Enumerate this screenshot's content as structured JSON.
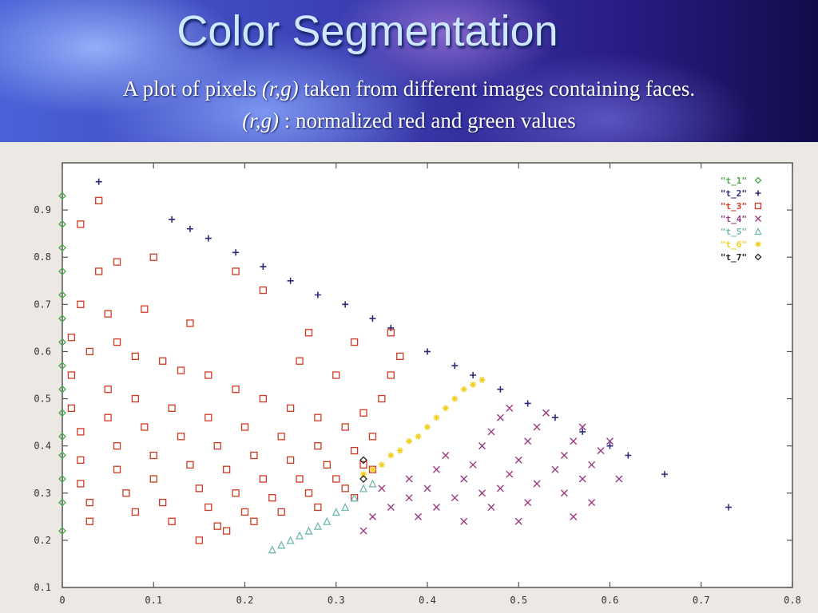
{
  "slide": {
    "title": "Color Segmentation",
    "subtitle_line1_pre": "A plot of pixels ",
    "subtitle_line1_var": "(r,g)",
    "subtitle_line1_post": " taken from different images containing faces.",
    "subtitle_line2_var": "(r,g)",
    "subtitle_line2_post": " : normalized red and green values"
  },
  "chart_data": {
    "type": "scatter",
    "title": "",
    "xlabel": "",
    "ylabel": "",
    "xlim": [
      0,
      0.8
    ],
    "ylim": [
      0.1,
      1.0
    ],
    "xticks": [
      "0",
      "0.1",
      "0.2",
      "0.3",
      "0.4",
      "0.5",
      "0.6",
      "0.7",
      "0.8"
    ],
    "yticks": [
      "0.1",
      "0.2",
      "0.3",
      "0.4",
      "0.5",
      "0.6",
      "0.7",
      "0.8",
      "0.9"
    ],
    "grid": false,
    "legend_position": "top-right",
    "series": [
      {
        "name": "\"t_1\"",
        "marker": "diamond",
        "color": "#4aa84a",
        "points": [
          [
            0.0,
            0.22
          ],
          [
            0.0,
            0.28
          ],
          [
            0.0,
            0.33
          ],
          [
            0.0,
            0.38
          ],
          [
            0.0,
            0.42
          ],
          [
            0.0,
            0.47
          ],
          [
            0.0,
            0.52
          ],
          [
            0.0,
            0.57
          ],
          [
            0.0,
            0.62
          ],
          [
            0.0,
            0.67
          ],
          [
            0.0,
            0.72
          ],
          [
            0.0,
            0.77
          ],
          [
            0.0,
            0.82
          ],
          [
            0.0,
            0.87
          ],
          [
            0.0,
            0.93
          ]
        ]
      },
      {
        "name": "\"t_2\"",
        "marker": "plus",
        "color": "#2a2a7a",
        "points": [
          [
            0.04,
            0.96
          ],
          [
            0.12,
            0.88
          ],
          [
            0.14,
            0.86
          ],
          [
            0.16,
            0.84
          ],
          [
            0.19,
            0.81
          ],
          [
            0.22,
            0.78
          ],
          [
            0.25,
            0.75
          ],
          [
            0.28,
            0.72
          ],
          [
            0.31,
            0.7
          ],
          [
            0.34,
            0.67
          ],
          [
            0.36,
            0.65
          ],
          [
            0.4,
            0.6
          ],
          [
            0.43,
            0.57
          ],
          [
            0.45,
            0.55
          ],
          [
            0.48,
            0.52
          ],
          [
            0.51,
            0.49
          ],
          [
            0.54,
            0.46
          ],
          [
            0.57,
            0.43
          ],
          [
            0.6,
            0.4
          ],
          [
            0.62,
            0.38
          ],
          [
            0.66,
            0.34
          ],
          [
            0.73,
            0.27
          ]
        ]
      },
      {
        "name": "\"t_3\"",
        "marker": "square",
        "color": "#d03a20",
        "points": [
          [
            0.02,
            0.87
          ],
          [
            0.04,
            0.92
          ],
          [
            0.04,
            0.77
          ],
          [
            0.06,
            0.79
          ],
          [
            0.1,
            0.8
          ],
          [
            0.02,
            0.7
          ],
          [
            0.05,
            0.68
          ],
          [
            0.09,
            0.69
          ],
          [
            0.14,
            0.66
          ],
          [
            0.19,
            0.77
          ],
          [
            0.22,
            0.73
          ],
          [
            0.27,
            0.64
          ],
          [
            0.32,
            0.62
          ],
          [
            0.36,
            0.64
          ],
          [
            0.37,
            0.59
          ],
          [
            0.01,
            0.63
          ],
          [
            0.03,
            0.6
          ],
          [
            0.06,
            0.62
          ],
          [
            0.08,
            0.59
          ],
          [
            0.11,
            0.58
          ],
          [
            0.13,
            0.56
          ],
          [
            0.16,
            0.55
          ],
          [
            0.19,
            0.52
          ],
          [
            0.22,
            0.5
          ],
          [
            0.25,
            0.48
          ],
          [
            0.28,
            0.46
          ],
          [
            0.31,
            0.44
          ],
          [
            0.34,
            0.42
          ],
          [
            0.35,
            0.5
          ],
          [
            0.36,
            0.55
          ],
          [
            0.3,
            0.55
          ],
          [
            0.26,
            0.58
          ],
          [
            0.33,
            0.47
          ],
          [
            0.01,
            0.55
          ],
          [
            0.01,
            0.48
          ],
          [
            0.02,
            0.43
          ],
          [
            0.02,
            0.37
          ],
          [
            0.02,
            0.32
          ],
          [
            0.03,
            0.28
          ],
          [
            0.03,
            0.24
          ],
          [
            0.05,
            0.52
          ],
          [
            0.05,
            0.46
          ],
          [
            0.06,
            0.4
          ],
          [
            0.06,
            0.35
          ],
          [
            0.07,
            0.3
          ],
          [
            0.08,
            0.26
          ],
          [
            0.08,
            0.5
          ],
          [
            0.09,
            0.44
          ],
          [
            0.1,
            0.38
          ],
          [
            0.1,
            0.33
          ],
          [
            0.11,
            0.28
          ],
          [
            0.12,
            0.24
          ],
          [
            0.12,
            0.48
          ],
          [
            0.13,
            0.42
          ],
          [
            0.14,
            0.36
          ],
          [
            0.15,
            0.31
          ],
          [
            0.16,
            0.27
          ],
          [
            0.17,
            0.23
          ],
          [
            0.16,
            0.46
          ],
          [
            0.17,
            0.4
          ],
          [
            0.18,
            0.35
          ],
          [
            0.19,
            0.3
          ],
          [
            0.2,
            0.26
          ],
          [
            0.21,
            0.24
          ],
          [
            0.2,
            0.44
          ],
          [
            0.21,
            0.38
          ],
          [
            0.22,
            0.33
          ],
          [
            0.23,
            0.29
          ],
          [
            0.24,
            0.26
          ],
          [
            0.24,
            0.42
          ],
          [
            0.25,
            0.37
          ],
          [
            0.26,
            0.33
          ],
          [
            0.27,
            0.3
          ],
          [
            0.28,
            0.27
          ],
          [
            0.28,
            0.4
          ],
          [
            0.29,
            0.36
          ],
          [
            0.3,
            0.33
          ],
          [
            0.31,
            0.31
          ],
          [
            0.32,
            0.29
          ],
          [
            0.32,
            0.39
          ],
          [
            0.33,
            0.36
          ],
          [
            0.34,
            0.35
          ],
          [
            0.15,
            0.2
          ],
          [
            0.18,
            0.22
          ]
        ]
      },
      {
        "name": "\"t_4\"",
        "marker": "cross",
        "color": "#9a3a80",
        "points": [
          [
            0.33,
            0.22
          ],
          [
            0.34,
            0.25
          ],
          [
            0.36,
            0.27
          ],
          [
            0.38,
            0.29
          ],
          [
            0.35,
            0.31
          ],
          [
            0.38,
            0.33
          ],
          [
            0.4,
            0.31
          ],
          [
            0.41,
            0.35
          ],
          [
            0.42,
            0.38
          ],
          [
            0.43,
            0.29
          ],
          [
            0.44,
            0.33
          ],
          [
            0.45,
            0.36
          ],
          [
            0.46,
            0.4
          ],
          [
            0.47,
            0.43
          ],
          [
            0.48,
            0.46
          ],
          [
            0.49,
            0.48
          ],
          [
            0.47,
            0.27
          ],
          [
            0.48,
            0.31
          ],
          [
            0.49,
            0.34
          ],
          [
            0.5,
            0.37
          ],
          [
            0.51,
            0.41
          ],
          [
            0.52,
            0.44
          ],
          [
            0.53,
            0.47
          ],
          [
            0.51,
            0.28
          ],
          [
            0.52,
            0.32
          ],
          [
            0.54,
            0.35
          ],
          [
            0.55,
            0.38
          ],
          [
            0.56,
            0.41
          ],
          [
            0.57,
            0.44
          ],
          [
            0.55,
            0.3
          ],
          [
            0.57,
            0.33
          ],
          [
            0.58,
            0.36
          ],
          [
            0.59,
            0.39
          ],
          [
            0.6,
            0.41
          ],
          [
            0.58,
            0.28
          ],
          [
            0.61,
            0.33
          ],
          [
            0.56,
            0.25
          ],
          [
            0.5,
            0.24
          ],
          [
            0.44,
            0.24
          ],
          [
            0.39,
            0.25
          ],
          [
            0.41,
            0.27
          ],
          [
            0.46,
            0.3
          ]
        ]
      },
      {
        "name": "\"t_5\"",
        "marker": "triangle",
        "color": "#70b8b0",
        "points": [
          [
            0.23,
            0.18
          ],
          [
            0.24,
            0.19
          ],
          [
            0.25,
            0.2
          ],
          [
            0.26,
            0.21
          ],
          [
            0.27,
            0.22
          ],
          [
            0.28,
            0.23
          ],
          [
            0.29,
            0.24
          ],
          [
            0.3,
            0.26
          ],
          [
            0.31,
            0.27
          ],
          [
            0.32,
            0.29
          ],
          [
            0.33,
            0.31
          ],
          [
            0.34,
            0.32
          ]
        ]
      },
      {
        "name": "\"t_6\"",
        "marker": "star",
        "color": "#f0d020",
        "points": [
          [
            0.33,
            0.34
          ],
          [
            0.34,
            0.35
          ],
          [
            0.35,
            0.36
          ],
          [
            0.36,
            0.38
          ],
          [
            0.37,
            0.39
          ],
          [
            0.38,
            0.41
          ],
          [
            0.39,
            0.42
          ],
          [
            0.4,
            0.44
          ],
          [
            0.41,
            0.46
          ],
          [
            0.42,
            0.48
          ],
          [
            0.43,
            0.5
          ],
          [
            0.44,
            0.52
          ],
          [
            0.45,
            0.53
          ],
          [
            0.46,
            0.54
          ]
        ]
      },
      {
        "name": "\"t_7\"",
        "marker": "diamond",
        "color": "#222222",
        "points": [
          [
            0.33,
            0.37
          ],
          [
            0.33,
            0.33
          ]
        ]
      }
    ]
  }
}
